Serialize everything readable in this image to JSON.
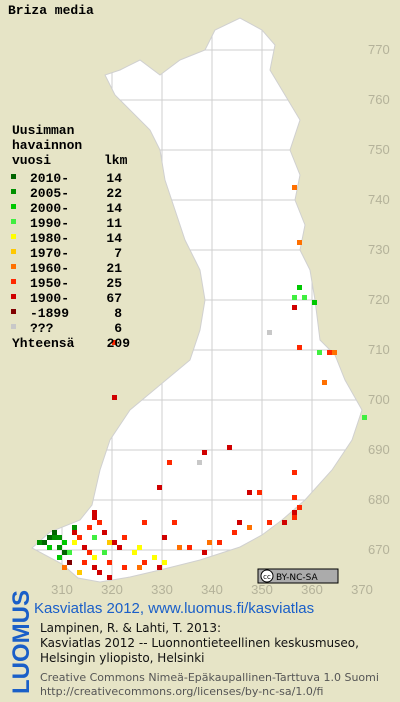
{
  "title": "Briza media",
  "legend": {
    "header": [
      "Uusimman",
      "havainnon",
      "vuosi"
    ],
    "count_header": "lkm",
    "items": [
      {
        "label": "2010-",
        "count": 14,
        "color": "#006400"
      },
      {
        "label": "2005-",
        "count": 22,
        "color": "#009000"
      },
      {
        "label": "2000-",
        "count": 14,
        "color": "#00c800"
      },
      {
        "label": "1990-",
        "count": 11,
        "color": "#40ee40"
      },
      {
        "label": "1980-",
        "count": 14,
        "color": "#ffff00"
      },
      {
        "label": "1970-",
        "count": 7,
        "color": "#ffc800"
      },
      {
        "label": "1960-",
        "count": 21,
        "color": "#ff7000"
      },
      {
        "label": "1950-",
        "count": 25,
        "color": "#ff2800"
      },
      {
        "label": "1900-",
        "count": 67,
        "color": "#d00000"
      },
      {
        "label": "-1899",
        "count": 8,
        "color": "#800000"
      },
      {
        "label": "???",
        "count": 6,
        "color": "#c8c8c8"
      }
    ],
    "total_label": "Yhteensä",
    "total": 209
  },
  "map": {
    "xticks": [
      310,
      320,
      330,
      340,
      350,
      360,
      370
    ],
    "yticks": [
      670,
      680,
      690,
      700,
      710,
      720,
      730,
      740,
      750,
      760,
      770
    ],
    "cells": [
      [
        356,
        742,
        6
      ],
      [
        357,
        731,
        6
      ],
      [
        357,
        722,
        2
      ],
      [
        356,
        720,
        3
      ],
      [
        358,
        720,
        3
      ],
      [
        360,
        719,
        2
      ],
      [
        356,
        718,
        8
      ],
      [
        320,
        711,
        7
      ],
      [
        361,
        709,
        3
      ],
      [
        363,
        709,
        7
      ],
      [
        357,
        710,
        7
      ],
      [
        351,
        713,
        10
      ],
      [
        364,
        709,
        6
      ],
      [
        362,
        703,
        6
      ],
      [
        370,
        696,
        3
      ],
      [
        320,
        700,
        8
      ],
      [
        337,
        687,
        10
      ],
      [
        331,
        687,
        7
      ],
      [
        329,
        682,
        8
      ],
      [
        338,
        689,
        8
      ],
      [
        343,
        690,
        8
      ],
      [
        349,
        681,
        7
      ],
      [
        356,
        685,
        7
      ],
      [
        356,
        680,
        7
      ],
      [
        356,
        677,
        8
      ],
      [
        356,
        676,
        7
      ],
      [
        357,
        678,
        7
      ],
      [
        354,
        675,
        8
      ],
      [
        351,
        675,
        7
      ],
      [
        347,
        681,
        8
      ],
      [
        345,
        675,
        8
      ],
      [
        347,
        674,
        6
      ],
      [
        344,
        673,
        7
      ],
      [
        341,
        671,
        7
      ],
      [
        339,
        671,
        6
      ],
      [
        338,
        669,
        8
      ],
      [
        335,
        670,
        7
      ],
      [
        333,
        670,
        6
      ],
      [
        330,
        672,
        8
      ],
      [
        332,
        675,
        7
      ],
      [
        326,
        675,
        7
      ],
      [
        325,
        670,
        4
      ],
      [
        324,
        669,
        4
      ],
      [
        321,
        670,
        8
      ],
      [
        322,
        672,
        7
      ],
      [
        320,
        671,
        8
      ],
      [
        322,
        666,
        7
      ],
      [
        325,
        666,
        6
      ],
      [
        305,
        671,
        1
      ],
      [
        306,
        671,
        0
      ],
      [
        307,
        672,
        0
      ],
      [
        308,
        672,
        1
      ],
      [
        308,
        673,
        0
      ],
      [
        309,
        672,
        1
      ],
      [
        310,
        671,
        2
      ],
      [
        307,
        670,
        2
      ],
      [
        309,
        670,
        1
      ],
      [
        310,
        669,
        0
      ],
      [
        311,
        669,
        3
      ],
      [
        309,
        668,
        2
      ],
      [
        312,
        671,
        4
      ],
      [
        312,
        673,
        8
      ],
      [
        313,
        672,
        7
      ],
      [
        314,
        670,
        8
      ],
      [
        315,
        669,
        7
      ],
      [
        316,
        668,
        4
      ],
      [
        314,
        667,
        7
      ],
      [
        316,
        666,
        8
      ],
      [
        317,
        665,
        8
      ],
      [
        319,
        667,
        7
      ],
      [
        318,
        669,
        3
      ],
      [
        319,
        671,
        5
      ],
      [
        316,
        672,
        3
      ],
      [
        315,
        674,
        7
      ],
      [
        316,
        676,
        8
      ],
      [
        316,
        677,
        8
      ],
      [
        317,
        675,
        7
      ],
      [
        311,
        667,
        9
      ],
      [
        313,
        665,
        5
      ],
      [
        310,
        666,
        6
      ],
      [
        312,
        674,
        1
      ],
      [
        326,
        667,
        7
      ],
      [
        328,
        668,
        4
      ],
      [
        329,
        666,
        8
      ],
      [
        330,
        667,
        4
      ],
      [
        319,
        664,
        8
      ],
      [
        318,
        673,
        8
      ]
    ]
  },
  "badge_icon": "cc",
  "badge": "BY-NC-SA",
  "credits": {
    "link": "Kasviatlas 2012, www.luomus.fi/kasviatlas",
    "lines": [
      "Lampinen, R. & Lahti, T. 2013:",
      "Kasviatlas 2012 -- Luonnontieteellinen keskusmuseo,",
      "Helsingin yliopisto, Helsinki"
    ],
    "license": [
      "Creative Commons Nimeä-Epäkaupallinen-Tarttuva 1.0 Suomi",
      "http://creativecommons.org/licenses/by-nc-sa/1.0/fi"
    ]
  },
  "logo": "LUOMUS"
}
